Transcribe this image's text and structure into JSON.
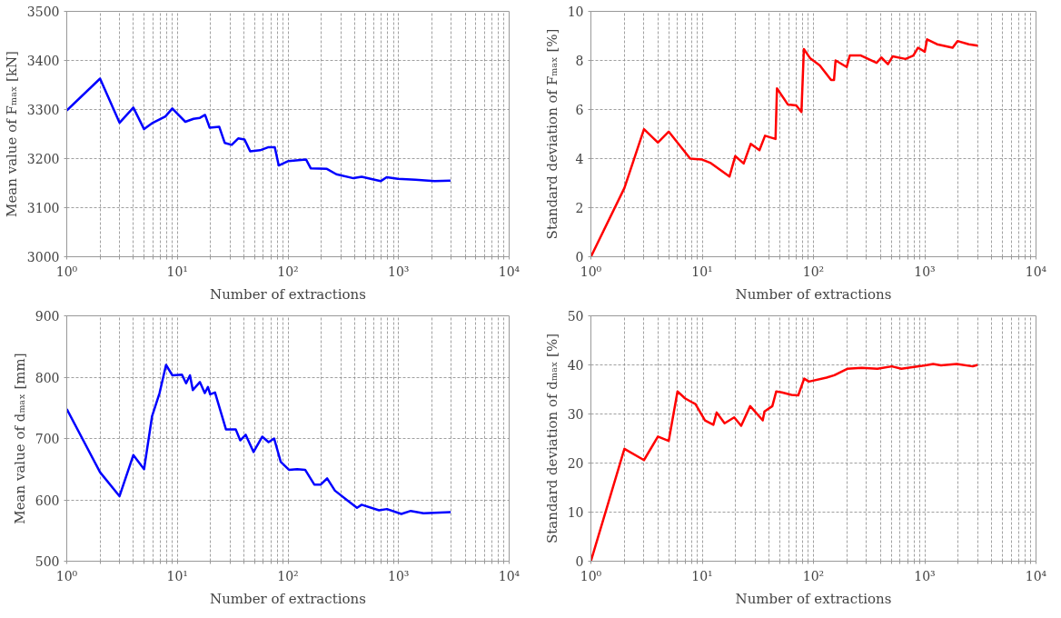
{
  "chart_data": [
    {
      "type": "line",
      "xlabel": "Number of extractions",
      "ylabel": "Mean value of Fₘₐₓ [kN]",
      "log": "x",
      "grid": true,
      "line_style": "solid",
      "xlim": [
        1,
        10000
      ],
      "ylim": [
        3000,
        3500
      ],
      "yticks": [
        3000,
        3100,
        3200,
        3300,
        3400,
        3500
      ],
      "xticks": [
        {
          "value": 1,
          "label": "10⁰"
        },
        {
          "value": 2,
          "label": null
        },
        {
          "value": 3,
          "label": null
        },
        {
          "value": 4,
          "label": null
        },
        {
          "value": 5,
          "label": null
        },
        {
          "value": 6,
          "label": null
        },
        {
          "value": 7,
          "label": null
        },
        {
          "value": 8,
          "label": null
        },
        {
          "value": 9,
          "label": null
        },
        {
          "value": 10,
          "label": "10¹"
        },
        {
          "value": 20,
          "label": null
        },
        {
          "value": 30,
          "label": null
        },
        {
          "value": 40,
          "label": null
        },
        {
          "value": 50,
          "label": null
        },
        {
          "value": 60,
          "label": null
        },
        {
          "value": 70,
          "label": null
        },
        {
          "value": 80,
          "label": null
        },
        {
          "value": 90,
          "label": null
        },
        {
          "value": 100,
          "label": "10²"
        },
        {
          "value": 200,
          "label": null
        },
        {
          "value": 300,
          "label": null
        },
        {
          "value": 400,
          "label": null
        },
        {
          "value": 500,
          "label": null
        },
        {
          "value": 600,
          "label": null
        },
        {
          "value": 700,
          "label": null
        },
        {
          "value": 800,
          "label": null
        },
        {
          "value": 900,
          "label": null
        },
        {
          "value": 1000,
          "label": "10³"
        },
        {
          "value": 2000,
          "label": null
        },
        {
          "value": 3000,
          "label": null
        },
        {
          "value": 4000,
          "label": null
        },
        {
          "value": 5000,
          "label": null
        },
        {
          "value": 6000,
          "label": null
        },
        {
          "value": 7000,
          "label": null
        },
        {
          "value": 8000,
          "label": null
        },
        {
          "value": 9000,
          "label": null
        },
        {
          "value": 10000,
          "label": "10⁴"
        }
      ],
      "x": [
        1,
        2,
        3,
        4,
        5,
        6,
        7.8,
        9,
        11.8,
        14,
        16,
        17.8,
        19.6,
        23.9,
        26.8,
        31,
        35.5,
        40.5,
        45.5,
        56,
        66,
        76,
        82.5,
        101,
        146,
        161,
        225,
        274,
        391,
        464,
        688,
        781,
        986,
        1420,
        2120,
        2950
      ],
      "series": [
        {
          "color": "#0000ff",
          "values": [
            3298,
            3363,
            3273,
            3304,
            3260,
            3273,
            3286,
            3302,
            3275,
            3281,
            3283,
            3289,
            3263,
            3265,
            3232,
            3228,
            3241,
            3239,
            3215,
            3217,
            3223,
            3223,
            3186,
            3195,
            3198,
            3180,
            3179,
            3168,
            3160,
            3163,
            3154,
            3162,
            3159,
            3157,
            3154,
            3155
          ]
        }
      ]
    },
    {
      "type": "line",
      "xlabel": "Number of extractions",
      "ylabel": "Standard deviation of Fₘₐₓ [%]",
      "log": "x",
      "grid": true,
      "line_style": "solid",
      "xlim": [
        1,
        10000
      ],
      "ylim": [
        0,
        10
      ],
      "yticks": [
        0,
        2,
        4,
        6,
        8,
        10
      ],
      "xticks": [
        {
          "value": 1,
          "label": "10⁰"
        },
        {
          "value": 2,
          "label": null
        },
        {
          "value": 3,
          "label": null
        },
        {
          "value": 4,
          "label": null
        },
        {
          "value": 5,
          "label": null
        },
        {
          "value": 6,
          "label": null
        },
        {
          "value": 7,
          "label": null
        },
        {
          "value": 8,
          "label": null
        },
        {
          "value": 9,
          "label": null
        },
        {
          "value": 10,
          "label": "10¹"
        },
        {
          "value": 20,
          "label": null
        },
        {
          "value": 30,
          "label": null
        },
        {
          "value": 40,
          "label": null
        },
        {
          "value": 50,
          "label": null
        },
        {
          "value": 60,
          "label": null
        },
        {
          "value": 70,
          "label": null
        },
        {
          "value": 80,
          "label": null
        },
        {
          "value": 90,
          "label": null
        },
        {
          "value": 100,
          "label": "10²"
        },
        {
          "value": 200,
          "label": null
        },
        {
          "value": 300,
          "label": null
        },
        {
          "value": 400,
          "label": null
        },
        {
          "value": 500,
          "label": null
        },
        {
          "value": 600,
          "label": null
        },
        {
          "value": 700,
          "label": null
        },
        {
          "value": 800,
          "label": null
        },
        {
          "value": 900,
          "label": null
        },
        {
          "value": 1000,
          "label": "10³"
        },
        {
          "value": 2000,
          "label": null
        },
        {
          "value": 3000,
          "label": null
        },
        {
          "value": 4000,
          "label": null
        },
        {
          "value": 5000,
          "label": null
        },
        {
          "value": 6000,
          "label": null
        },
        {
          "value": 7000,
          "label": null
        },
        {
          "value": 8000,
          "label": null
        },
        {
          "value": 9000,
          "label": null
        },
        {
          "value": 10000,
          "label": "10⁴"
        }
      ],
      "x": [
        1,
        2,
        3,
        4,
        5,
        7.8,
        10,
        11.8,
        17.6,
        19.8,
        23.6,
        27.3,
        32.7,
        36.7,
        45.6,
        47,
        59,
        70,
        78,
        82,
        93.7,
        114,
        144,
        153,
        158,
        199,
        212,
        267,
        369,
        407,
        467,
        516,
        672,
        790,
        871,
        1000,
        1050,
        1290,
        1780,
        1970,
        2490,
        3000
      ],
      "series": [
        {
          "color": "#ff0000",
          "values": [
            0,
            2.8,
            5.2,
            4.65,
            5.1,
            4.0,
            3.96,
            3.83,
            3.27,
            4.1,
            3.8,
            4.6,
            4.34,
            4.93,
            4.8,
            6.86,
            6.2,
            6.17,
            5.9,
            8.46,
            8.08,
            7.8,
            7.2,
            7.2,
            8.0,
            7.73,
            8.2,
            8.2,
            7.9,
            8.12,
            7.85,
            8.17,
            8.06,
            8.2,
            8.52,
            8.35,
            8.86,
            8.66,
            8.52,
            8.79,
            8.66,
            8.6
          ]
        }
      ]
    },
    {
      "type": "line",
      "xlabel": "Number of extractions",
      "ylabel": "Mean value of dₘₐₓ [mm]",
      "log": "x",
      "grid": true,
      "line_style": "solid",
      "xlim": [
        1,
        10000
      ],
      "ylim": [
        500,
        900
      ],
      "yticks": [
        500,
        600,
        700,
        800,
        900
      ],
      "xticks": [
        {
          "value": 1,
          "label": "10⁰"
        },
        {
          "value": 2,
          "label": null
        },
        {
          "value": 3,
          "label": null
        },
        {
          "value": 4,
          "label": null
        },
        {
          "value": 5,
          "label": null
        },
        {
          "value": 6,
          "label": null
        },
        {
          "value": 7,
          "label": null
        },
        {
          "value": 8,
          "label": null
        },
        {
          "value": 9,
          "label": null
        },
        {
          "value": 10,
          "label": "10¹"
        },
        {
          "value": 20,
          "label": null
        },
        {
          "value": 30,
          "label": null
        },
        {
          "value": 40,
          "label": null
        },
        {
          "value": 50,
          "label": null
        },
        {
          "value": 60,
          "label": null
        },
        {
          "value": 70,
          "label": null
        },
        {
          "value": 80,
          "label": null
        },
        {
          "value": 90,
          "label": null
        },
        {
          "value": 100,
          "label": "10²"
        },
        {
          "value": 200,
          "label": null
        },
        {
          "value": 300,
          "label": null
        },
        {
          "value": 400,
          "label": null
        },
        {
          "value": 500,
          "label": null
        },
        {
          "value": 600,
          "label": null
        },
        {
          "value": 700,
          "label": null
        },
        {
          "value": 800,
          "label": null
        },
        {
          "value": 900,
          "label": null
        },
        {
          "value": 1000,
          "label": "10³"
        },
        {
          "value": 2000,
          "label": null
        },
        {
          "value": 3000,
          "label": null
        },
        {
          "value": 4000,
          "label": null
        },
        {
          "value": 5000,
          "label": null
        },
        {
          "value": 6000,
          "label": null
        },
        {
          "value": 7000,
          "label": null
        },
        {
          "value": 8000,
          "label": null
        },
        {
          "value": 9000,
          "label": null
        },
        {
          "value": 10000,
          "label": "10⁴"
        }
      ],
      "x": [
        1,
        2,
        3,
        4,
        5,
        5.9,
        6.9,
        7.9,
        9,
        11,
        12,
        13,
        13.8,
        16,
        17.7,
        18.9,
        19.8,
        21.9,
        27.5,
        33.7,
        37,
        41.5,
        48.8,
        58.6,
        66.8,
        75,
        86,
        102,
        121,
        143,
        173,
        198,
        226,
        266,
        346,
        421,
        464,
        666,
        785,
        1060,
        1290,
        1680,
        2960
      ],
      "series": [
        {
          "color": "#0000ff",
          "values": [
            748,
            645,
            606,
            673,
            650,
            736,
            774,
            820,
            803,
            804,
            790,
            803,
            779,
            792,
            774,
            784,
            772,
            775,
            715,
            715,
            697,
            706,
            678,
            703,
            694,
            700,
            662,
            649,
            650,
            649,
            625,
            625,
            635,
            615,
            599,
            587,
            592,
            583,
            585,
            577,
            582,
            578,
            580
          ]
        }
      ]
    },
    {
      "type": "line",
      "xlabel": "Number of extractions",
      "ylabel": "Standard deviation of dₘₐₓ [%]",
      "log": "x",
      "grid": true,
      "line_style": "solid",
      "xlim": [
        1,
        10000
      ],
      "ylim": [
        0,
        50
      ],
      "yticks": [
        0,
        10,
        20,
        30,
        40,
        50
      ],
      "xticks": [
        {
          "value": 1,
          "label": "10⁰"
        },
        {
          "value": 2,
          "label": null
        },
        {
          "value": 3,
          "label": null
        },
        {
          "value": 4,
          "label": null
        },
        {
          "value": 5,
          "label": null
        },
        {
          "value": 6,
          "label": null
        },
        {
          "value": 7,
          "label": null
        },
        {
          "value": 8,
          "label": null
        },
        {
          "value": 9,
          "label": null
        },
        {
          "value": 10,
          "label": "10¹"
        },
        {
          "value": 20,
          "label": null
        },
        {
          "value": 30,
          "label": null
        },
        {
          "value": 40,
          "label": null
        },
        {
          "value": 50,
          "label": null
        },
        {
          "value": 60,
          "label": null
        },
        {
          "value": 70,
          "label": null
        },
        {
          "value": 80,
          "label": null
        },
        {
          "value": 90,
          "label": null
        },
        {
          "value": 100,
          "label": "10²"
        },
        {
          "value": 200,
          "label": null
        },
        {
          "value": 300,
          "label": null
        },
        {
          "value": 400,
          "label": null
        },
        {
          "value": 500,
          "label": null
        },
        {
          "value": 600,
          "label": null
        },
        {
          "value": 700,
          "label": null
        },
        {
          "value": 800,
          "label": null
        },
        {
          "value": 900,
          "label": null
        },
        {
          "value": 1000,
          "label": "10³"
        },
        {
          "value": 2000,
          "label": null
        },
        {
          "value": 3000,
          "label": null
        },
        {
          "value": 4000,
          "label": null
        },
        {
          "value": 5000,
          "label": null
        },
        {
          "value": 6000,
          "label": null
        },
        {
          "value": 7000,
          "label": null
        },
        {
          "value": 8000,
          "label": null
        },
        {
          "value": 9000,
          "label": null
        },
        {
          "value": 10000,
          "label": "10⁴"
        }
      ],
      "x": [
        1,
        2,
        3,
        4,
        5,
        6,
        7,
        8.7,
        10.6,
        12.6,
        13.5,
        15.9,
        19.4,
        22.4,
        27,
        35,
        36.3,
        42.7,
        46.3,
        52,
        63.5,
        73,
        82.5,
        91,
        131,
        154,
        201,
        271,
        376,
        506,
        617,
        946,
        1190,
        1400,
        1940,
        2700,
        2980
      ],
      "series": [
        {
          "color": "#ff0000",
          "values": [
            0,
            22.9,
            20.6,
            25.4,
            24.5,
            34.6,
            33.2,
            32,
            28.7,
            27.8,
            30.3,
            28.1,
            29.3,
            27.6,
            31.6,
            28.7,
            30.5,
            31.6,
            34.6,
            34.4,
            33.9,
            33.8,
            37.2,
            36.6,
            37.4,
            37.9,
            39.2,
            39.4,
            39.2,
            39.7,
            39.2,
            39.8,
            40.2,
            39.9,
            40.2,
            39.7,
            40
          ]
        }
      ]
    }
  ]
}
